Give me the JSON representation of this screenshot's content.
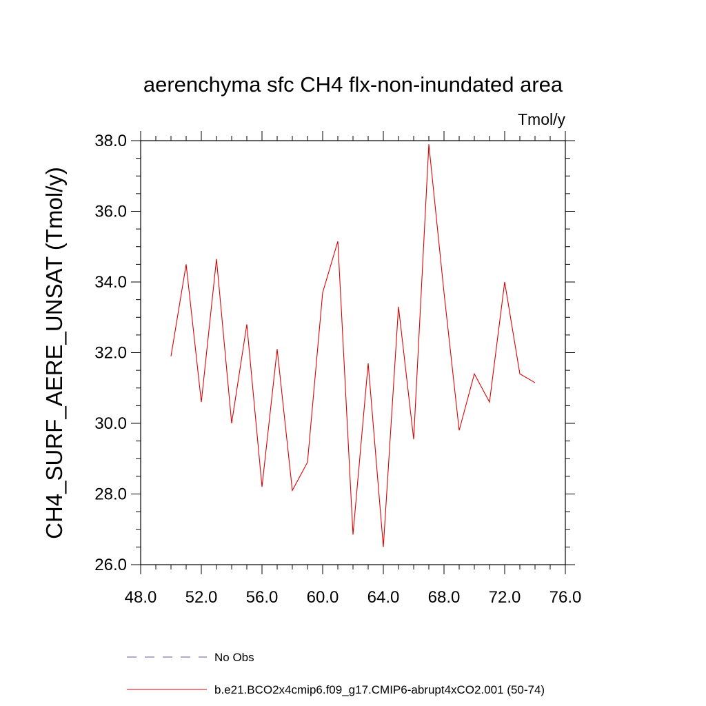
{
  "chart_data": {
    "type": "line",
    "title": "aerenchyma sfc CH4 flx-non-inundated area",
    "units_label": "Tmol/y",
    "ylabel": "CH4_SURF_AERE_UNSAT  (Tmol/y)",
    "xlabel": "",
    "xlim": [
      48.0,
      76.0
    ],
    "ylim": [
      26.0,
      38.0
    ],
    "x_ticks": [
      "48.0",
      "52.0",
      "56.0",
      "60.0",
      "64.0",
      "68.0",
      "72.0",
      "76.0"
    ],
    "y_ticks": [
      "26.0",
      "28.0",
      "30.0",
      "32.0",
      "34.0",
      "36.0",
      "38.0"
    ],
    "grid": false,
    "legend_position": "bottom",
    "legend": [
      {
        "label": "No Obs",
        "color": "#5a5aa8",
        "style": "dashed"
      },
      {
        "label": "b.e21.BCO2x4cmip6.f09_g17.CMIP6-abrupt4xCO2.001 (50-74)",
        "color": "#e00000",
        "style": "solid"
      }
    ],
    "series": [
      {
        "name": "b.e21.BCO2x4cmip6.f09_g17.CMIP6-abrupt4xCO2.001 (50-74)",
        "color": "#e00000",
        "x": [
          50,
          51,
          52,
          53,
          54,
          55,
          56,
          57,
          58,
          59,
          60,
          61,
          62,
          63,
          64,
          65,
          66,
          67,
          68,
          69,
          70,
          71,
          72,
          73,
          74
        ],
        "y": [
          31.9,
          34.5,
          30.6,
          34.65,
          30.0,
          32.8,
          28.2,
          32.1,
          28.1,
          28.9,
          33.7,
          35.15,
          26.85,
          31.7,
          26.5,
          33.3,
          29.55,
          37.9,
          33.7,
          29.8,
          31.4,
          30.6,
          34.0,
          31.4,
          31.15
        ]
      }
    ]
  }
}
